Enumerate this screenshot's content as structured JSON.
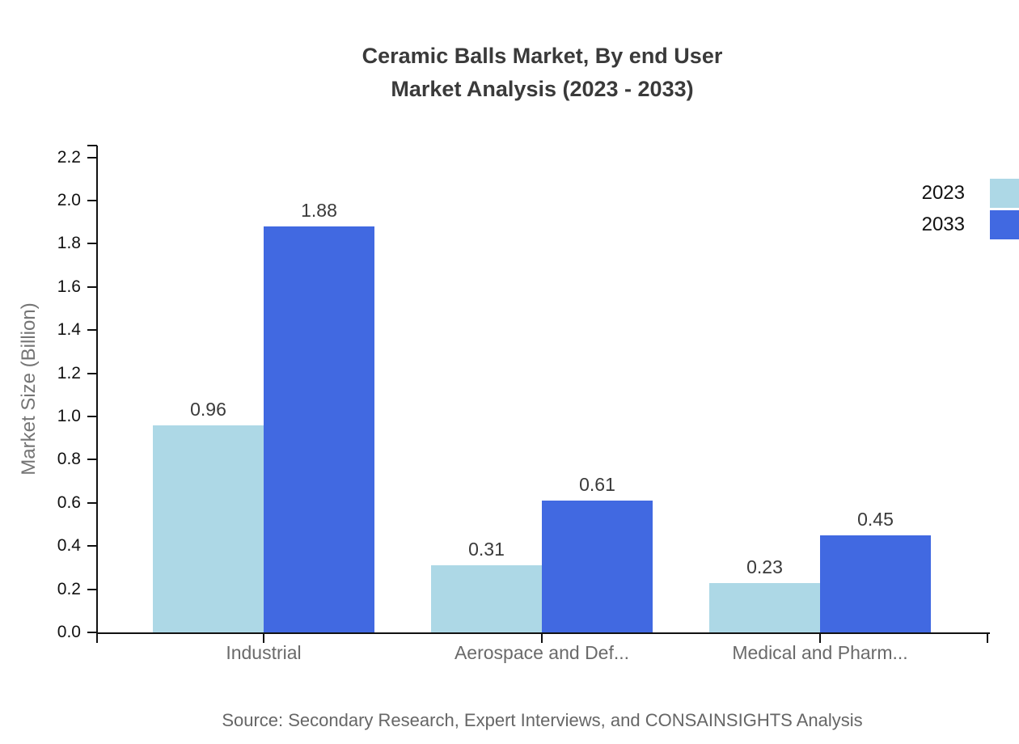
{
  "title": {
    "line1": "Ceramic Balls Market, By end User",
    "line2": "Market Analysis (2023 - 2033)"
  },
  "footer": {
    "source": "Source: Secondary Research, Expert Interviews, and CONSAINSIGHTS Analysis"
  },
  "chart_data": {
    "type": "bar",
    "title": "Ceramic Balls Market, By end User Market Analysis (2023 - 2033)",
    "categories": [
      "Industrial",
      "Aerospace and Def...",
      "Medical and Pharm..."
    ],
    "series": [
      {
        "name": "2023",
        "color": "#ADD8E6",
        "values": [
          0.96,
          0.31,
          0.23
        ]
      },
      {
        "name": "2033",
        "color": "#4169E1",
        "values": [
          1.88,
          0.61,
          0.45
        ]
      }
    ],
    "value_labels": [
      "0.96",
      "1.88",
      "0.31",
      "0.61",
      "0.23",
      "0.45"
    ],
    "ylabel": "Market Size (Billion)",
    "xlabel": "",
    "ylim": [
      0.0,
      2.2
    ],
    "yticks": [
      0.0,
      0.2,
      0.4,
      0.6,
      0.8,
      1.0,
      1.2,
      1.4,
      1.6,
      1.8,
      2.0,
      2.2
    ],
    "ytick_labels": [
      "0.0",
      "0.2",
      "0.4",
      "0.6",
      "0.8",
      "1.0",
      "1.2",
      "1.4",
      "1.6",
      "1.8",
      "2.0",
      "2.2"
    ],
    "legend": [
      "2023",
      "2033"
    ],
    "legend_position": "top-right",
    "grid": false,
    "axis_color": "#111111",
    "tick_label_color": "#111111",
    "value_label_color": "#3a3a3a",
    "category_label_color": "#6a6a6a"
  }
}
